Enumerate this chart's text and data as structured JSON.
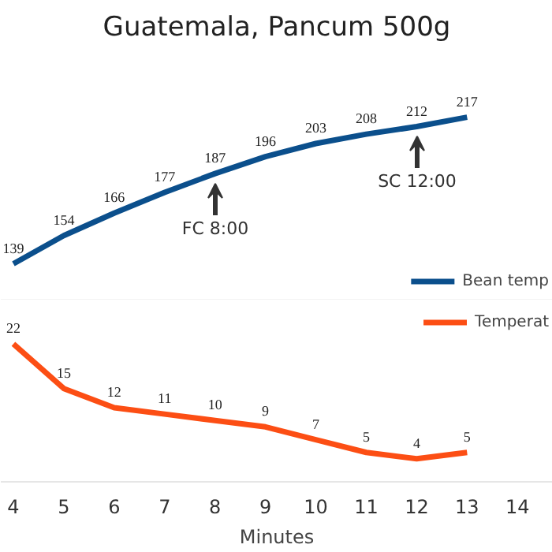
{
  "chart_data": [
    {
      "type": "line",
      "title": "Guatemala, Pancum 500g",
      "x": [
        4,
        5,
        6,
        7,
        8,
        9,
        10,
        11,
        12,
        13
      ],
      "series": [
        {
          "name": "Bean temp",
          "color": "#0b4f8c",
          "values": [
            139,
            154,
            166,
            177,
            187,
            196,
            203,
            208,
            212,
            217
          ]
        }
      ],
      "tick_labels": false,
      "annotations": [
        "FC 8:00",
        "SC 12:00"
      ],
      "data_labels": true,
      "legend": "bottom right",
      "marker": "none",
      "line_style": "solid"
    },
    {
      "type": "line",
      "xlabel": "Minutes",
      "x": [
        4,
        5,
        6,
        7,
        8,
        9,
        10,
        11,
        12,
        13
      ],
      "series": [
        {
          "name": "Temperat",
          "color": "#fc4e14",
          "values": [
            22,
            15,
            12,
            11,
            10,
            9,
            7,
            5,
            4,
            5
          ]
        }
      ],
      "xlim": [
        3.75,
        14.7
      ],
      "xticks": [
        4,
        5,
        6,
        7,
        8,
        9,
        10,
        11,
        12,
        13,
        14
      ],
      "tick_labels": "x",
      "data_labels": true,
      "legend": "top right",
      "marker": "none",
      "line_style": "solid"
    }
  ]
}
